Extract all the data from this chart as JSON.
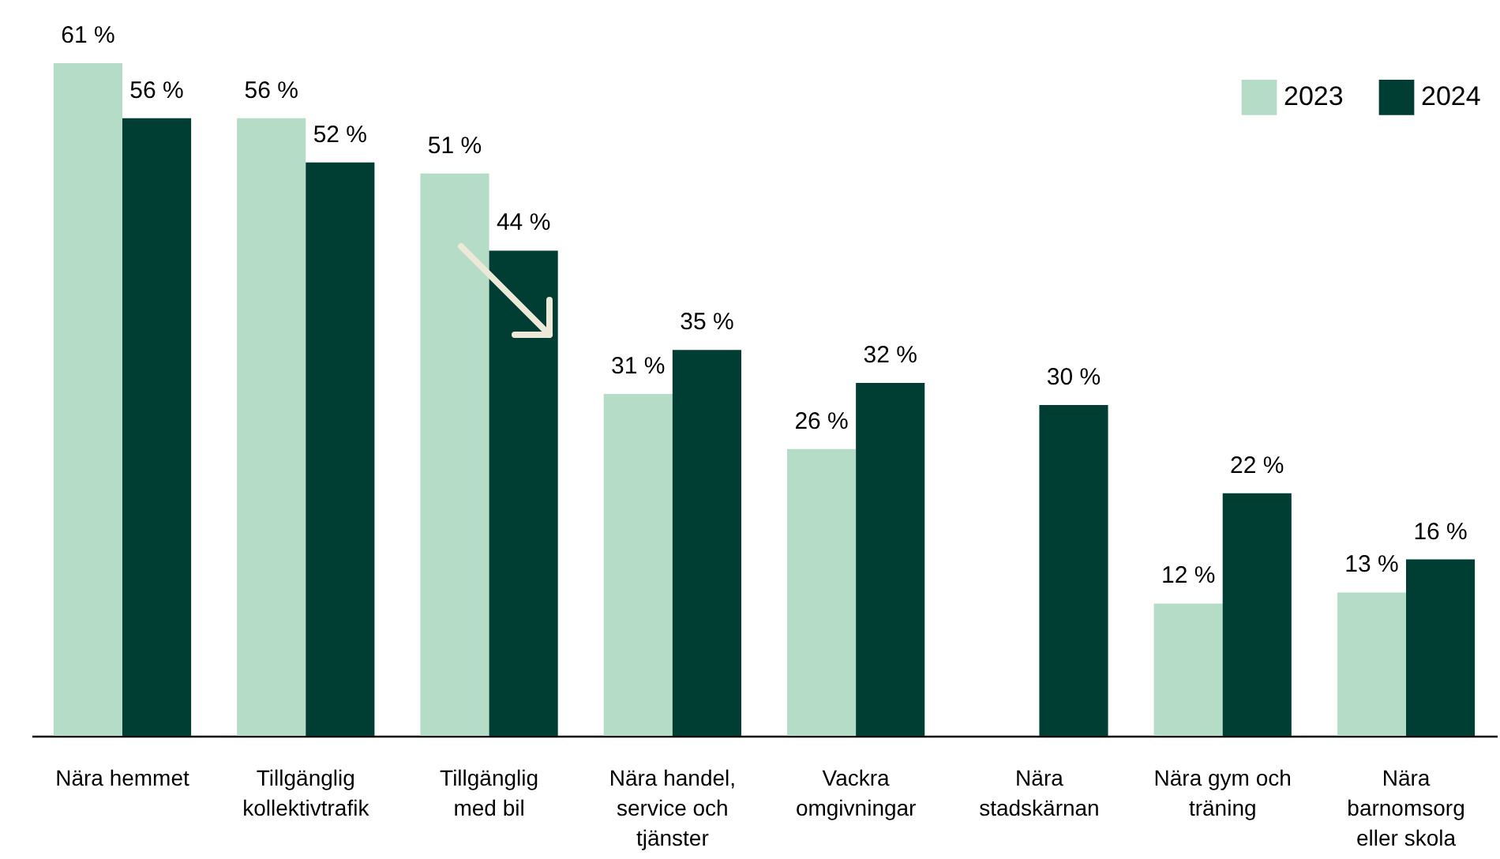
{
  "chart_data": {
    "type": "bar",
    "categories": [
      "Nära hemmet",
      "Tillgänglig kollektivtrafik",
      "Tillgänglig med bil",
      "Nära handel, service och tjänster",
      "Vackra omgivningar",
      "Nära stadskärnan",
      "Nära gym och träning",
      "Nära barnomsorg eller skola"
    ],
    "series": [
      {
        "name": "2023",
        "color": "#b5dcc6",
        "values": [
          61,
          56,
          51,
          31,
          26,
          null,
          12,
          13
        ],
        "value_labels": [
          "61 %",
          "56 %",
          "51 %",
          "31 %",
          "26 %",
          null,
          "12 %",
          "13 %"
        ]
      },
      {
        "name": "2024",
        "color": "#003d33",
        "values": [
          56,
          52,
          44,
          35,
          32,
          30,
          22,
          16
        ],
        "value_labels": [
          "56 %",
          "52 %",
          "44 %",
          "35 %",
          "32 %",
          "30 %",
          "22 %",
          "16 %"
        ]
      }
    ],
    "legend": "top right"
  }
}
